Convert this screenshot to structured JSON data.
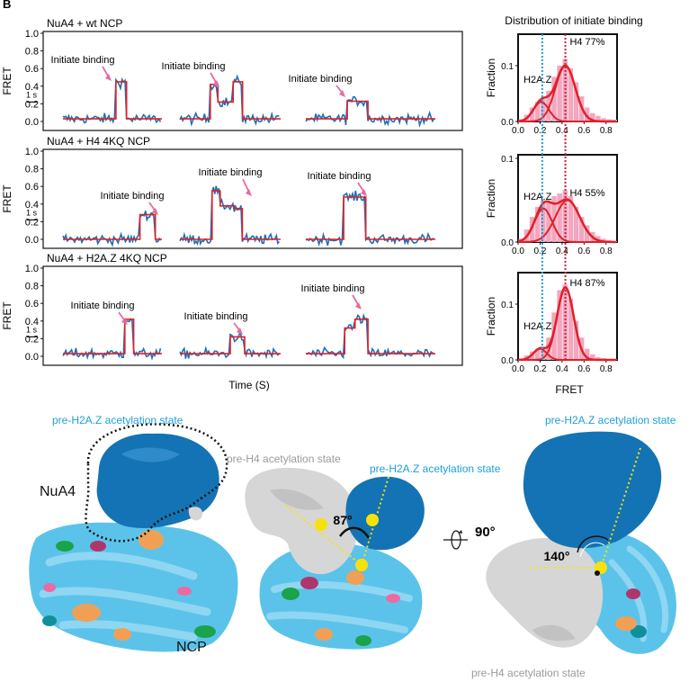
{
  "panel_label": "B",
  "traces": {
    "ylabel": "FRET",
    "xlabel": "Time (S)",
    "y_ticks": [
      "0.0",
      "0.2",
      "0.4",
      "0.6",
      "0.8",
      "1.0"
    ],
    "scalebar_label": "1 s",
    "annotation": "Initiate binding"
  },
  "histograms": {
    "title": "Distribution of initiate binding",
    "ylabel": "Fraction",
    "xlabel": "FRET",
    "x_ticks": [
      "0.0",
      "0.2",
      "0.4",
      "0.6",
      "0.8"
    ],
    "y_ticks": [
      "0.0",
      "0.1"
    ],
    "h2az_label": "H2A.Z"
  },
  "colors": {
    "trace": "#1f6fb2",
    "fit": "#e0202a",
    "hist_bar": "#f2a7bf",
    "gauss": "#e0202a",
    "h2az_line": "#1f9fd8",
    "h4_line": "#d61f3a",
    "arrow": "#e76aa3",
    "nucleosome": "#5bc3ea",
    "nua4": "#1473b4",
    "h4_density": "#d6d6d6",
    "marker": "#f6e20a"
  },
  "chart_data": [
    {
      "type": "line",
      "title": "NuA4 + wt NCP",
      "ylabel": "FRET",
      "xlabel": "Time (S)",
      "ylim": [
        0,
        1.0
      ],
      "series": [
        {
          "name": "",
          "segments": [
            {
              "level": 0.03,
              "dur": 3.0
            },
            {
              "level": 0.45,
              "dur": 0.6
            },
            {
              "level": 0.03,
              "dur": 2.0
            }
          ]
        },
        {
          "name": "",
          "segments": [
            {
              "level": 0.03,
              "dur": 1.6
            },
            {
              "level": 0.42,
              "dur": 0.4
            },
            {
              "level": 0.22,
              "dur": 0.8
            },
            {
              "level": 0.45,
              "dur": 0.5
            },
            {
              "level": 0.03,
              "dur": 2.0
            }
          ]
        },
        {
          "name": "",
          "segments": [
            {
              "level": 0.03,
              "dur": 1.6
            },
            {
              "level": 0.23,
              "dur": 0.8
            },
            {
              "level": 0.03,
              "dur": 2.6
            }
          ]
        }
      ]
    },
    {
      "type": "line",
      "title": "NuA4 + H4 4KQ NCP",
      "ylabel": "FRET",
      "xlabel": "Time (S)",
      "ylim": [
        0,
        1.0
      ],
      "series": [
        {
          "name": "",
          "segments": [
            {
              "level": 0.0,
              "dur": 3.5
            },
            {
              "level": 0.28,
              "dur": 0.7
            },
            {
              "level": 0.0,
              "dur": 0.3
            }
          ]
        },
        {
          "name": "",
          "segments": [
            {
              "level": 0.0,
              "dur": 1.6
            },
            {
              "level": 0.55,
              "dur": 0.4
            },
            {
              "level": 0.38,
              "dur": 0.7
            },
            {
              "level": 0.35,
              "dur": 0.4
            },
            {
              "level": 0.0,
              "dur": 1.9
            }
          ]
        },
        {
          "name": "",
          "segments": [
            {
              "level": 0.0,
              "dur": 1.2
            },
            {
              "level": 0.48,
              "dur": 0.7
            },
            {
              "level": 0.0,
              "dur": 2.2
            }
          ]
        }
      ]
    },
    {
      "type": "line",
      "title": "NuA4 + H2A.Z 4KQ NCP",
      "ylabel": "FRET",
      "xlabel": "Time (S)",
      "ylim": [
        0,
        1.0
      ],
      "series": [
        {
          "name": "",
          "segments": [
            {
              "level": 0.03,
              "dur": 3.5
            },
            {
              "level": 0.42,
              "dur": 0.5
            },
            {
              "level": 0.03,
              "dur": 1.6
            }
          ]
        },
        {
          "name": "",
          "segments": [
            {
              "level": 0.03,
              "dur": 2.8
            },
            {
              "level": 0.22,
              "dur": 0.8
            },
            {
              "level": 0.03,
              "dur": 2.0
            }
          ]
        },
        {
          "name": "",
          "segments": [
            {
              "level": 0.03,
              "dur": 1.5
            },
            {
              "level": 0.32,
              "dur": 0.4
            },
            {
              "level": 0.42,
              "dur": 0.5
            },
            {
              "level": 0.03,
              "dur": 2.6
            }
          ]
        }
      ]
    },
    {
      "type": "bar",
      "title": "Distribution of initiate binding",
      "xlabel": "FRET",
      "ylabel": "Fraction",
      "xlim": [
        0.0,
        0.9
      ],
      "ylim": [
        0,
        0.15
      ],
      "bins": [
        0.05,
        0.1,
        0.15,
        0.2,
        0.25,
        0.3,
        0.35,
        0.4,
        0.45,
        0.5,
        0.55,
        0.6,
        0.65,
        0.7,
        0.75,
        0.8,
        0.85,
        0.9
      ],
      "values": [
        0.004,
        0.012,
        0.025,
        0.035,
        0.04,
        0.055,
        0.08,
        0.1,
        0.112,
        0.095,
        0.07,
        0.045,
        0.025,
        0.015,
        0.01,
        0.006,
        0.004,
        0.003
      ],
      "components": [
        {
          "label": "H2A.Z",
          "mean": 0.21,
          "sd": 0.07,
          "amp": 0.035
        },
        {
          "label": "H4 77%",
          "mean": 0.43,
          "sd": 0.09,
          "amp": 0.1
        }
      ],
      "lines": {
        "h2az": 0.22,
        "h4": 0.43
      },
      "annotations": {
        "h2az": "H2A.Z",
        "h4": "H4 77%"
      }
    },
    {
      "type": "bar",
      "xlabel": "FRET",
      "ylabel": "Fraction",
      "xlim": [
        0.0,
        0.9
      ],
      "ylim": [
        0,
        0.1
      ],
      "bins": [
        0.05,
        0.1,
        0.15,
        0.2,
        0.25,
        0.3,
        0.35,
        0.4,
        0.45,
        0.5,
        0.55,
        0.6,
        0.65,
        0.7,
        0.75,
        0.8,
        0.85,
        0.9
      ],
      "values": [
        0.004,
        0.015,
        0.03,
        0.042,
        0.05,
        0.05,
        0.055,
        0.058,
        0.062,
        0.055,
        0.042,
        0.03,
        0.02,
        0.012,
        0.007,
        0.004,
        0.002,
        0.001
      ],
      "components": [
        {
          "label": "H2A.Z",
          "mean": 0.23,
          "sd": 0.08,
          "amp": 0.04
        },
        {
          "label": "H4 55%",
          "mean": 0.45,
          "sd": 0.11,
          "amp": 0.05
        }
      ],
      "lines": {
        "h2az": 0.22,
        "h4": 0.43
      },
      "annotations": {
        "h2az": "H2A.Z",
        "h4": "H4 55%"
      }
    },
    {
      "type": "bar",
      "xlabel": "FRET",
      "ylabel": "Fraction",
      "xlim": [
        0.0,
        0.9
      ],
      "ylim": [
        0,
        0.15
      ],
      "bins": [
        0.05,
        0.1,
        0.15,
        0.2,
        0.25,
        0.3,
        0.35,
        0.4,
        0.45,
        0.5,
        0.55,
        0.6,
        0.65,
        0.7,
        0.75,
        0.8,
        0.85,
        0.9
      ],
      "values": [
        0.002,
        0.008,
        0.015,
        0.02,
        0.022,
        0.04,
        0.085,
        0.125,
        0.135,
        0.11,
        0.07,
        0.04,
        0.02,
        0.01,
        0.005,
        0.003,
        0.001,
        0.001
      ],
      "components": [
        {
          "label": "H2A.Z",
          "mean": 0.2,
          "sd": 0.06,
          "amp": 0.02
        },
        {
          "label": "H4 87%",
          "mean": 0.43,
          "sd": 0.075,
          "amp": 0.13
        }
      ],
      "lines": {
        "h2az": 0.22,
        "h4": 0.43
      },
      "annotations": {
        "h2az": "H2A.Z",
        "h4": "H4 87%"
      }
    }
  ],
  "structures": {
    "label_pre_h2az": "pre-H2A.Z acetylation state",
    "label_pre_h4": "pre-H4 acetylation state",
    "label_nua4": "NuA4",
    "label_ncp": "NCP",
    "angle_1": "87°",
    "angle_2": "140°",
    "rotation": "90°"
  }
}
